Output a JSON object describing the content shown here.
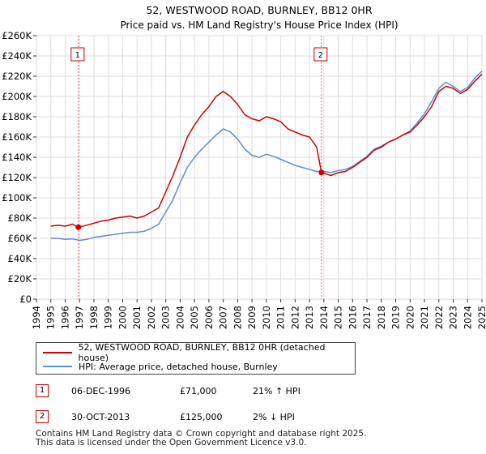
{
  "chart_data": {
    "type": "line",
    "title": "52, WESTWOOD ROAD, BURNLEY, BB12 0HR",
    "subtitle": "Price paid vs. HM Land Registry's House Price Index (HPI)",
    "xlabel": "",
    "ylabel": "",
    "xlim": [
      1994,
      2025
    ],
    "ylim": [
      0,
      260000
    ],
    "y_ticks": [
      0,
      20000,
      40000,
      60000,
      80000,
      100000,
      120000,
      140000,
      160000,
      180000,
      200000,
      220000,
      240000,
      260000
    ],
    "y_tick_labels": [
      "£0",
      "£20K",
      "£40K",
      "£60K",
      "£80K",
      "£100K",
      "£120K",
      "£140K",
      "£160K",
      "£180K",
      "£200K",
      "£220K",
      "£240K",
      "£260K"
    ],
    "x_ticks": [
      1994,
      1995,
      1996,
      1997,
      1998,
      1999,
      2000,
      2001,
      2002,
      2003,
      2004,
      2005,
      2006,
      2007,
      2008,
      2009,
      2010,
      2011,
      2012,
      2013,
      2014,
      2015,
      2016,
      2017,
      2018,
      2019,
      2020,
      2021,
      2022,
      2023,
      2024,
      2025
    ],
    "x_tick_labels": [
      "1994",
      "1995",
      "1996",
      "1997",
      "1998",
      "1999",
      "2000",
      "2001",
      "2002",
      "2003",
      "2004",
      "2005",
      "2006",
      "2007",
      "2008",
      "2009",
      "2010",
      "2011",
      "2012",
      "2013",
      "2014",
      "2015",
      "2016",
      "2017",
      "2018",
      "2019",
      "2020",
      "2021",
      "2022",
      "2023",
      "2024",
      "2025"
    ],
    "grid": true,
    "series": [
      {
        "name": "52, WESTWOOD ROAD, BURNLEY, BB12 0HR (detached house)",
        "color": "#cc0000",
        "x": [
          1995.0,
          1995.5,
          1996.0,
          1996.5,
          1996.92,
          1997.5,
          1998.0,
          1998.5,
          1999.0,
          1999.5,
          2000.0,
          2000.5,
          2001.0,
          2001.5,
          2002.0,
          2002.5,
          2003.0,
          2003.5,
          2004.0,
          2004.5,
          2005.0,
          2005.5,
          2006.0,
          2006.5,
          2007.0,
          2007.5,
          2008.0,
          2008.5,
          2009.0,
          2009.5,
          2010.0,
          2010.5,
          2011.0,
          2011.5,
          2012.0,
          2012.5,
          2013.0,
          2013.5,
          2013.83,
          2014.5,
          2015.0,
          2015.5,
          2016.0,
          2016.5,
          2017.0,
          2017.5,
          2018.0,
          2018.5,
          2019.0,
          2019.5,
          2020.0,
          2020.5,
          2021.0,
          2021.5,
          2022.0,
          2022.5,
          2023.0,
          2023.5,
          2024.0,
          2024.5,
          2025.0
        ],
        "y": [
          72000,
          73000,
          72000,
          74000,
          71000,
          73000,
          75000,
          77000,
          78000,
          80000,
          81000,
          82000,
          80000,
          82000,
          86000,
          90000,
          106000,
          122000,
          140000,
          160000,
          172000,
          182000,
          190000,
          200000,
          205000,
          200000,
          192000,
          182000,
          178000,
          176000,
          180000,
          178000,
          175000,
          168000,
          165000,
          162000,
          160000,
          150000,
          125000,
          122000,
          125000,
          126000,
          130000,
          135000,
          140000,
          147000,
          150000,
          155000,
          158000,
          162000,
          165000,
          172000,
          180000,
          190000,
          205000,
          210000,
          208000,
          203000,
          207000,
          215000,
          222000
        ]
      },
      {
        "name": "HPI: Average price, detached house, Burnley",
        "color": "#5b8ed6",
        "x": [
          1995.0,
          1995.5,
          1996.0,
          1996.5,
          1997.0,
          1997.5,
          1998.0,
          1998.5,
          1999.0,
          1999.5,
          2000.0,
          2000.5,
          2001.0,
          2001.5,
          2002.0,
          2002.5,
          2003.0,
          2003.5,
          2004.0,
          2004.5,
          2005.0,
          2005.5,
          2006.0,
          2006.5,
          2007.0,
          2007.5,
          2008.0,
          2008.5,
          2009.0,
          2009.5,
          2010.0,
          2010.5,
          2011.0,
          2011.5,
          2012.0,
          2012.5,
          2013.0,
          2013.5,
          2014.0,
          2014.5,
          2015.0,
          2015.5,
          2016.0,
          2016.5,
          2017.0,
          2017.5,
          2018.0,
          2018.5,
          2019.0,
          2019.5,
          2020.0,
          2020.5,
          2021.0,
          2021.5,
          2022.0,
          2022.5,
          2023.0,
          2023.5,
          2024.0,
          2024.5,
          2025.0
        ],
        "y": [
          60000,
          60000,
          59000,
          59500,
          58000,
          59000,
          61000,
          62000,
          63000,
          64000,
          65000,
          66000,
          66000,
          67000,
          70000,
          74000,
          86000,
          98000,
          115000,
          130000,
          140000,
          148000,
          155000,
          162000,
          168000,
          165000,
          158000,
          148000,
          142000,
          140000,
          143000,
          141000,
          138000,
          135000,
          132000,
          130000,
          128000,
          126000,
          126000,
          125000,
          127000,
          128000,
          131000,
          136000,
          141000,
          148000,
          151000,
          155000,
          158000,
          162000,
          166000,
          174000,
          183000,
          195000,
          208000,
          214000,
          210000,
          205000,
          209000,
          218000,
          225000
        ]
      }
    ],
    "sales": [
      {
        "label": "1",
        "x": 1996.92,
        "y": 71000,
        "date": "06-DEC-1996",
        "price": "£71,000",
        "hpi_change": "21% ↑ HPI"
      },
      {
        "label": "2",
        "x": 2013.83,
        "y": 125000,
        "date": "30-OCT-2013",
        "price": "£125,000",
        "hpi_change": "2% ↓ HPI"
      }
    ],
    "legend_position": "bottom"
  },
  "legend": {
    "property_label": "52, WESTWOOD ROAD, BURNLEY, BB12 0HR (detached house)",
    "hpi_label": "HPI: Average price, detached house, Burnley",
    "property_color": "#cc0000",
    "hpi_color": "#5b8ed6"
  },
  "footer": {
    "line1": "Contains HM Land Registry data © Crown copyright and database right 2025.",
    "line2": "This data is licensed under the Open Government Licence v3.0."
  }
}
